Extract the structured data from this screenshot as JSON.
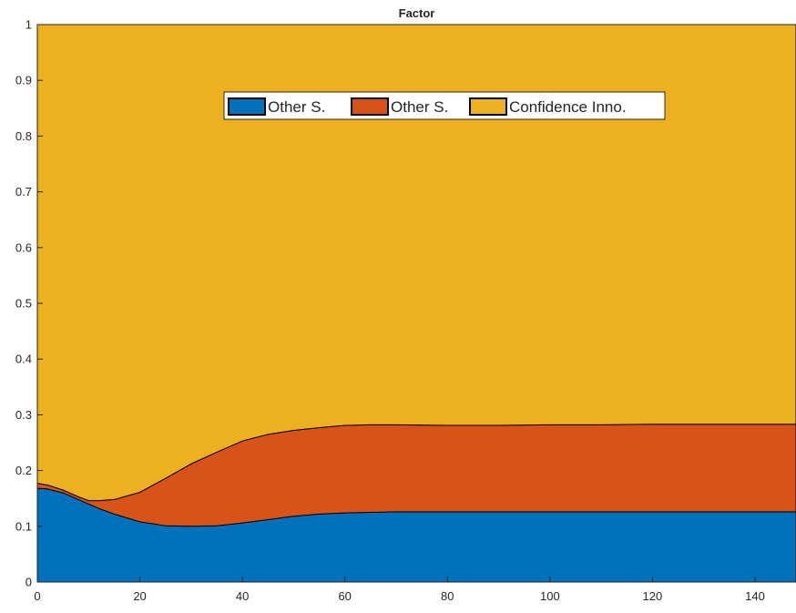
{
  "chart_data": {
    "type": "area",
    "stacked": true,
    "title": "Factor",
    "xlabel": "",
    "ylabel": "",
    "xlim": [
      0,
      148
    ],
    "ylim": [
      0,
      1
    ],
    "xticks": [
      0,
      20,
      40,
      60,
      80,
      100,
      120,
      140
    ],
    "yticks": [
      0,
      0.1,
      0.2,
      0.3,
      0.4,
      0.5,
      0.6,
      0.7,
      0.8,
      0.9,
      1
    ],
    "grid": false,
    "legend_position": "top-center",
    "x": [
      0,
      2,
      5,
      8,
      10,
      12,
      15,
      20,
      25,
      30,
      35,
      40,
      45,
      50,
      55,
      60,
      65,
      70,
      80,
      90,
      100,
      110,
      120,
      130,
      140,
      148
    ],
    "series": [
      {
        "name": "Other S.",
        "color": "#0072BD",
        "values": [
          0.168,
          0.167,
          0.16,
          0.148,
          0.14,
          0.132,
          0.122,
          0.108,
          0.101,
          0.1,
          0.101,
          0.106,
          0.112,
          0.118,
          0.122,
          0.124,
          0.125,
          0.126,
          0.126,
          0.126,
          0.126,
          0.126,
          0.126,
          0.126,
          0.126,
          0.126
        ]
      },
      {
        "name": "Other S.",
        "color": "#D95319",
        "values": [
          0.009,
          0.007,
          0.005,
          0.005,
          0.006,
          0.014,
          0.026,
          0.053,
          0.085,
          0.112,
          0.132,
          0.147,
          0.153,
          0.154,
          0.155,
          0.157,
          0.157,
          0.156,
          0.155,
          0.155,
          0.156,
          0.156,
          0.157,
          0.157,
          0.157,
          0.157
        ]
      },
      {
        "name": "Confidence Inno.",
        "color": "#EDB120",
        "values": [
          0.823,
          0.826,
          0.835,
          0.847,
          0.854,
          0.854,
          0.852,
          0.839,
          0.814,
          0.788,
          0.767,
          0.747,
          0.735,
          0.728,
          0.723,
          0.719,
          0.718,
          0.718,
          0.719,
          0.719,
          0.718,
          0.718,
          0.717,
          0.717,
          0.717,
          0.717
        ]
      }
    ]
  }
}
